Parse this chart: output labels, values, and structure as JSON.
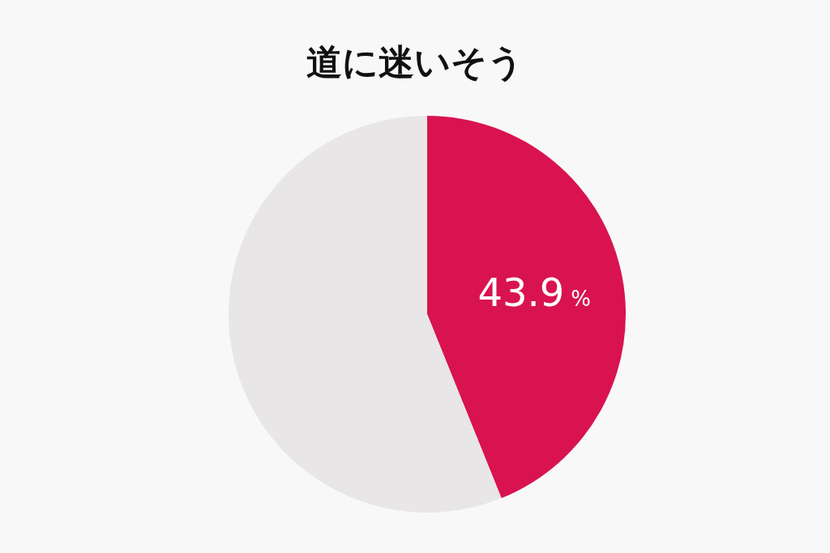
{
  "chart_data": {
    "type": "pie",
    "title": "道に迷いそう",
    "categories": [
      null,
      null
    ],
    "values": [
      43.9,
      56.1
    ],
    "colors": [
      "#d91350",
      "#e8e6e7"
    ],
    "value_labels": [
      "43.9%",
      null
    ]
  }
}
